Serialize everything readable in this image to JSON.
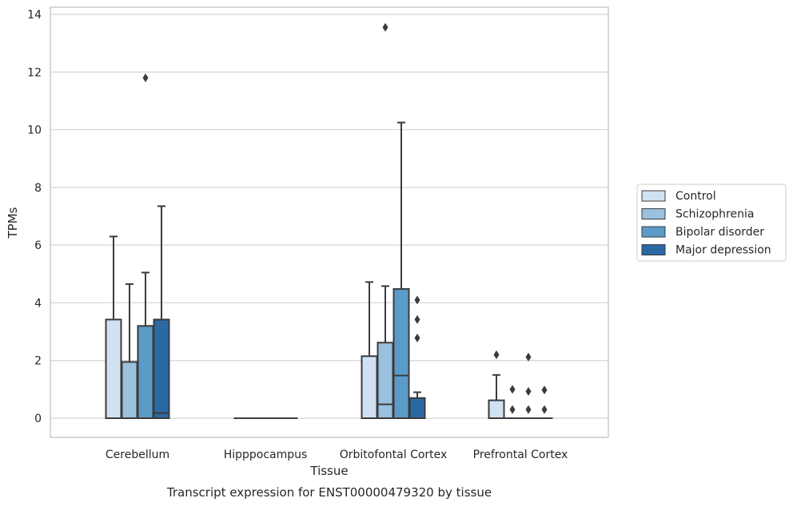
{
  "chart_data": {
    "type": "box",
    "title": "",
    "caption": "Transcript expression for ENST00000479320 by tissue",
    "xlabel": "Tissue",
    "ylabel": "TPMs",
    "ylim": [
      -0.65,
      14.25
    ],
    "yticks": [
      0,
      2,
      4,
      6,
      8,
      10,
      12,
      14
    ],
    "grid": true,
    "legend_position": "right",
    "categories": [
      "Cerebellum",
      "Hipppocampus",
      "Orbitofontal Cortex",
      "Prefrontal Cortex"
    ],
    "series": [
      {
        "name": "Control",
        "color": "#d0e1f2",
        "boxes": [
          {
            "q1": 0,
            "median": 0,
            "q3": 3.42,
            "whisker_low": 0,
            "whisker_high": 6.3,
            "outliers": []
          },
          {
            "q1": 0,
            "median": 0,
            "q3": 0,
            "whisker_low": 0,
            "whisker_high": 0,
            "outliers": []
          },
          {
            "q1": 0,
            "median": 0,
            "q3": 2.15,
            "whisker_low": 0,
            "whisker_high": 4.72,
            "outliers": []
          },
          {
            "q1": 0,
            "median": 0,
            "q3": 0.62,
            "whisker_low": 0,
            "whisker_high": 1.5,
            "outliers": [
              2.2
            ]
          }
        ]
      },
      {
        "name": "Schizophrenia",
        "color": "#9ac1dd",
        "boxes": [
          {
            "q1": 0,
            "median": 0,
            "q3": 1.95,
            "whisker_low": 0,
            "whisker_high": 4.65,
            "outliers": []
          },
          {
            "q1": 0,
            "median": 0,
            "q3": 0,
            "whisker_low": 0,
            "whisker_high": 0,
            "outliers": []
          },
          {
            "q1": 0,
            "median": 0.48,
            "q3": 2.62,
            "whisker_low": 0,
            "whisker_high": 4.58,
            "outliers": [
              13.55
            ]
          },
          {
            "q1": 0,
            "median": 0,
            "q3": 0,
            "whisker_low": 0,
            "whisker_high": 0,
            "outliers": [
              0.3,
              1.0
            ]
          }
        ]
      },
      {
        "name": "Bipolar disorder",
        "color": "#5a9bc8",
        "boxes": [
          {
            "q1": 0,
            "median": 0,
            "q3": 3.2,
            "whisker_low": 0,
            "whisker_high": 5.05,
            "outliers": [
              11.8
            ]
          },
          {
            "q1": 0,
            "median": 0,
            "q3": 0,
            "whisker_low": 0,
            "whisker_high": 0,
            "outliers": []
          },
          {
            "q1": 0,
            "median": 1.48,
            "q3": 4.48,
            "whisker_low": 0,
            "whisker_high": 10.25,
            "outliers": []
          },
          {
            "q1": 0,
            "median": 0,
            "q3": 0,
            "whisker_low": 0,
            "whisker_high": 0,
            "outliers": [
              0.3,
              0.93,
              2.12
            ]
          }
        ]
      },
      {
        "name": "Major depression",
        "color": "#2b69a4",
        "boxes": [
          {
            "q1": 0,
            "median": 0.18,
            "q3": 3.42,
            "whisker_low": 0,
            "whisker_high": 7.35,
            "outliers": []
          },
          {
            "q1": 0,
            "median": 0,
            "q3": 0,
            "whisker_low": 0,
            "whisker_high": 0,
            "outliers": []
          },
          {
            "q1": 0,
            "median": 0,
            "q3": 0.7,
            "whisker_low": 0,
            "whisker_high": 0.9,
            "outliers": [
              2.78,
              3.42,
              4.1
            ]
          },
          {
            "q1": 0,
            "median": 0,
            "q3": 0,
            "whisker_low": 0,
            "whisker_high": 0,
            "outliers": [
              0.3,
              0.98
            ]
          }
        ]
      }
    ]
  }
}
